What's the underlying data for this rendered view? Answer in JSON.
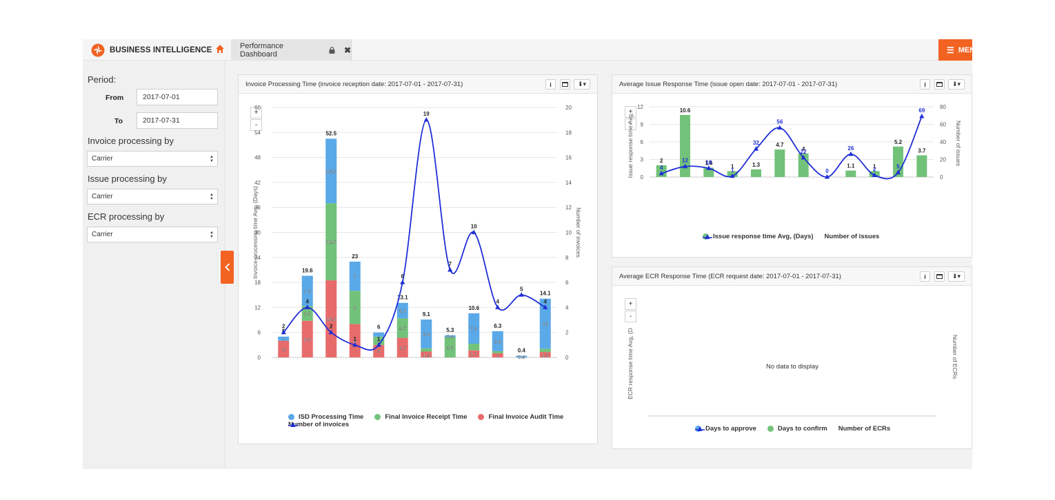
{
  "app": {
    "title": "BUSINESS INTELLIGENCE",
    "menu_label": "MENU"
  },
  "colors": {
    "accent": "#f26322",
    "isd": "#5aa9e9",
    "receipt": "#72c27a",
    "audit": "#e86b6b",
    "line": "#1f2ed6"
  },
  "tab": {
    "label": "Performance Dashboard"
  },
  "sidebar": {
    "period_label": "Period:",
    "from_label": "From",
    "from_value": "2017-07-01",
    "to_label": "To",
    "to_value": "2017-07-31",
    "invoice_label": "Invoice processing by",
    "invoice_value": "Carrier",
    "issue_label": "Issue processing by",
    "issue_value": "Carrier",
    "ecr_label": "ECR processing by",
    "ecr_value": "Carrier"
  },
  "panels": {
    "invoice": {
      "title": "Invoice Processing Time (invoice reception date: 2017-07-01 - 2017-07-31)"
    },
    "issue": {
      "title": "Average Issue Response Time (issue open date: 2017-07-01 - 2017-07-31)"
    },
    "ecr": {
      "title": "Average ECR Response Time (ECR request date: 2017-07-01 - 2017-07-31)",
      "no_data": "No data to display"
    }
  },
  "zoom": {
    "in": "+",
    "out": "-"
  },
  "chart_data": [
    {
      "type": "bar",
      "stacked": true,
      "ylabel": "Invoice processing time Avg, (Days)",
      "y2label": "Number of invoices",
      "ylim": [
        0,
        60
      ],
      "y2lim": [
        0,
        20
      ],
      "yticks": [
        "0",
        "6",
        "12",
        "18",
        "24",
        "30",
        "36",
        "42",
        "48",
        "54",
        "60"
      ],
      "y2ticks": [
        "0",
        "2",
        "4",
        "6",
        "8",
        "10",
        "12",
        "14",
        "16",
        "18",
        "20"
      ],
      "series": [
        {
          "name": "ISD Processing Time",
          "color": "#5aa9e9",
          "values": [
            1,
            7.3,
            15.5,
            7,
            1,
            3.7,
            6.9,
            0.4,
            7.3,
            4.8,
            0.4,
            12
          ]
        },
        {
          "name": "Final Invoice Receipt Time",
          "color": "#72c27a",
          "values": [
            0,
            3.5,
            18.5,
            8,
            2,
            4.7,
            0.8,
            4.9,
            1.6,
            0.5,
            0,
            0.8
          ]
        },
        {
          "name": "Final Invoice Audit Time",
          "color": "#e86b6b",
          "values": [
            4,
            8.8,
            18.5,
            8,
            3,
            4.7,
            1.4,
            0,
            1.7,
            1,
            0,
            1.3
          ]
        },
        {
          "name": "Number of invoices",
          "type": "line",
          "axis": "right",
          "color": "#1f2ed6",
          "values": [
            2,
            4,
            2,
            1,
            1,
            6,
            19,
            7,
            10,
            4,
            5,
            4
          ]
        }
      ],
      "segment_labels": {
        "isd": [
          "1",
          "7.3",
          "15.5",
          "7",
          "",
          "3.7",
          "6.9",
          "0.4",
          "7.3",
          "4.8",
          "0.4",
          "12"
        ],
        "receipt": [
          "",
          "3.5",
          "18.5",
          "8",
          "2",
          "4.7",
          "",
          "4.9",
          "",
          "",
          "",
          ""
        ],
        "audit": [
          "4",
          "8.8",
          "18.5",
          "8",
          "3",
          "4.7",
          "1.4",
          "0",
          "1.7",
          "1",
          "",
          "1.3"
        ]
      },
      "totals": [
        "5",
        "19.6",
        "52.5",
        "23",
        "6",
        "13.1",
        "9.1",
        "5.3",
        "10.6",
        "6.3",
        "0.4",
        "14.1"
      ],
      "line_labels": [
        "2",
        "4",
        "2",
        "1",
        "1",
        "6",
        "19",
        "7",
        "10",
        "4",
        "5",
        "4"
      ],
      "legend": [
        "ISD Processing Time",
        "Final Invoice Receipt Time",
        "Final Invoice Audit Time",
        "Number of invoices"
      ]
    },
    {
      "type": "bar",
      "ylabel": "Issue response time Avg,",
      "y2label": "Number of issues",
      "ylim": [
        0,
        12
      ],
      "y2lim": [
        0,
        80
      ],
      "yticks": [
        "0",
        "3",
        "6",
        "9",
        "12"
      ],
      "y2ticks": [
        "0",
        "20",
        "40",
        "60",
        "80"
      ],
      "series": [
        {
          "name": "Issue response time Avg, (Days)",
          "color": "#72c27a",
          "values": [
            2,
            10.6,
            1.6,
            1,
            1.3,
            4.7,
            4,
            0,
            1.1,
            1,
            5.2,
            3.7
          ]
        },
        {
          "name": "Number of issues",
          "type": "line",
          "axis": "right",
          "color": "#1f2ed6",
          "values": [
            4,
            12,
            10,
            1,
            32,
            56,
            22,
            0,
            26,
            2,
            5,
            69
          ]
        }
      ],
      "bar_labels": [
        "2",
        "10.6",
        "1.6",
        "1",
        "1.3",
        "4.7",
        "4",
        "",
        "1.1",
        "1",
        "5.2",
        "3.7"
      ],
      "line_labels": [
        "4",
        "12",
        "10",
        "1",
        "32",
        "56",
        "22",
        "0",
        "26",
        "2",
        "5",
        "69"
      ],
      "legend": [
        "Issue response time Avg, (Days)",
        "Number of issues"
      ]
    },
    {
      "type": "bar",
      "ylabel": "ECR response time Avg, (D",
      "y2label": "Number of ECRs",
      "series": [],
      "legend": [
        "Days to approve",
        "Days to confirm",
        "Number of ECRs"
      ]
    }
  ]
}
